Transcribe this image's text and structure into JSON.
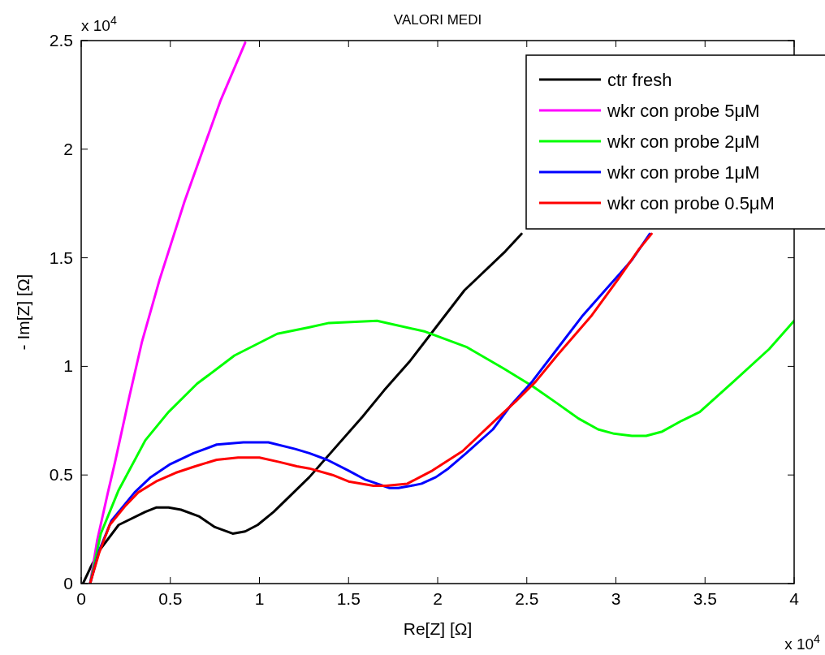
{
  "chart_data": {
    "type": "line",
    "title": "VALORI MEDI",
    "xlabel": "Re[Z] [Ω]",
    "ylabel": "- Im[Z] [Ω]",
    "annotations": [
      "x 10$^{4}$",
      "x 10$^{4}$"
    ],
    "xlim": [
      0,
      4
    ],
    "ylim": [
      0,
      2.5
    ],
    "xticks": [
      0,
      0.5,
      1,
      1.5,
      2,
      2.5,
      3,
      3.5,
      4
    ],
    "yticks": [
      0,
      0.5,
      1,
      1.5,
      2,
      2.5
    ],
    "grid": false,
    "legend": "top right",
    "line_style": "solid",
    "marker": "none",
    "series": [
      {
        "name": "ctr fresh",
        "color": "#000000",
        "x": [
          0.01,
          0.05,
          0.1,
          0.21,
          0.36,
          0.42,
          0.49,
          0.56,
          0.66,
          0.75,
          0.85,
          0.92,
          0.99,
          1.08,
          1.28,
          1.58,
          1.7,
          1.84,
          2.15,
          2.38,
          2.47
        ],
        "values": [
          0,
          0.07,
          0.15,
          0.27,
          0.33,
          0.35,
          0.35,
          0.34,
          0.31,
          0.26,
          0.23,
          0.24,
          0.27,
          0.33,
          0.49,
          0.77,
          0.89,
          1.02,
          1.35,
          1.53,
          1.61
        ]
      },
      {
        "name": "wkr con probe 5μM",
        "color": "#ff00ff",
        "x": [
          0.05,
          0.09,
          0.15,
          0.19,
          0.27,
          0.34,
          0.44,
          0.58,
          0.78,
          0.92
        ],
        "values": [
          0,
          0.2,
          0.42,
          0.56,
          0.86,
          1.11,
          1.4,
          1.76,
          2.22,
          2.49
        ]
      },
      {
        "name": "wkr con probe 2μM",
        "color": "#00ff00",
        "x": [
          0.05,
          0.11,
          0.21,
          0.36,
          0.49,
          0.65,
          0.86,
          1.1,
          1.28,
          1.39,
          1.66,
          1.93,
          2.16,
          2.37,
          2.53,
          2.67,
          2.79,
          2.9,
          2.99,
          3.09,
          3.17,
          3.26,
          3.37,
          3.47,
          3.66,
          3.86,
          4
        ],
        "values": [
          0,
          0.23,
          0.43,
          0.66,
          0.79,
          0.92,
          1.05,
          1.15,
          1.18,
          1.2,
          1.21,
          1.16,
          1.09,
          0.99,
          0.91,
          0.83,
          0.76,
          0.71,
          0.69,
          0.68,
          0.68,
          0.7,
          0.75,
          0.79,
          0.93,
          1.08,
          1.21
        ]
      },
      {
        "name": "wkr con probe 1μM",
        "color": "#0000ff",
        "x": [
          0.05,
          0.1,
          0.17,
          0.3,
          0.39,
          0.5,
          0.63,
          0.76,
          0.91,
          1.05,
          1.2,
          1.28,
          1.38,
          1.5,
          1.59,
          1.66,
          1.73,
          1.78,
          1.85,
          1.91,
          1.99,
          2.06,
          2.16,
          2.31,
          2.41,
          2.53,
          2.67,
          2.81,
          2.95,
          3.09,
          3.19
        ],
        "values": [
          0,
          0.15,
          0.29,
          0.42,
          0.49,
          0.55,
          0.6,
          0.64,
          0.65,
          0.65,
          0.62,
          0.6,
          0.57,
          0.52,
          0.48,
          0.46,
          0.44,
          0.44,
          0.45,
          0.46,
          0.49,
          0.53,
          0.6,
          0.71,
          0.82,
          0.93,
          1.08,
          1.23,
          1.36,
          1.49,
          1.61
        ]
      },
      {
        "name": "wkr con probe 0.5μM",
        "color": "#ff0000",
        "x": [
          0.05,
          0.1,
          0.16,
          0.25,
          0.32,
          0.42,
          0.53,
          0.64,
          0.76,
          0.88,
          1,
          1.11,
          1.21,
          1.28,
          1.41,
          1.5,
          1.64,
          1.71,
          1.83,
          1.9,
          1.97,
          2.14,
          2.32,
          2.44,
          2.55,
          2.67,
          2.86,
          3.02,
          3.13,
          3.2
        ],
        "values": [
          0,
          0.14,
          0.27,
          0.36,
          0.42,
          0.47,
          0.51,
          0.54,
          0.57,
          0.58,
          0.58,
          0.56,
          0.54,
          0.53,
          0.5,
          0.47,
          0.45,
          0.45,
          0.46,
          0.49,
          0.52,
          0.61,
          0.75,
          0.84,
          0.93,
          1.05,
          1.23,
          1.41,
          1.54,
          1.61
        ]
      }
    ]
  }
}
